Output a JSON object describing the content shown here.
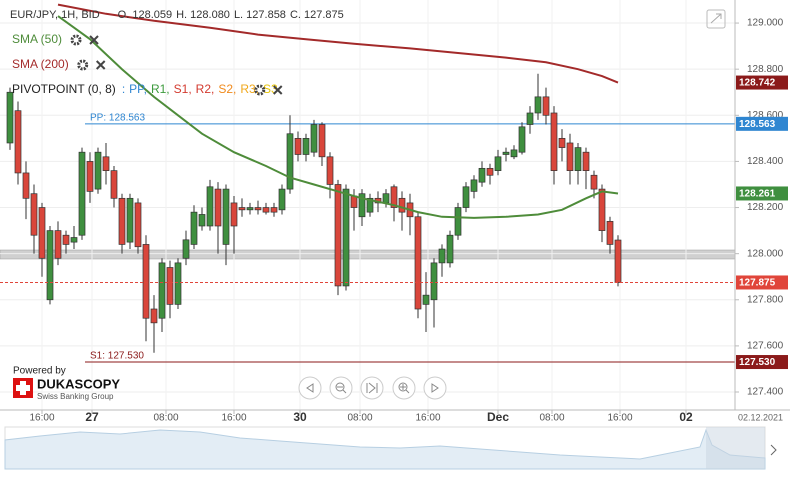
{
  "chart_data": {
    "type": "candlestick",
    "title": "EUR/JPY, 1H, BID",
    "header_stats": [
      "O. 128.059",
      "H. 128.080",
      "L. 127.858",
      "C. 127.875"
    ],
    "up_color": "#3f8f3f",
    "down_color": "#d9463b",
    "open": [
      128.48,
      128.62,
      128.35,
      128.26,
      128.2,
      127.8,
      128.1,
      128.08,
      128.05,
      128.08,
      128.4,
      128.28,
      128.42,
      128.36,
      128.24,
      128.05,
      128.22,
      128.04,
      127.76,
      127.72,
      127.94,
      127.78,
      127.98,
      128.04,
      128.12,
      128.12,
      128.28,
      128.04,
      128.22,
      128.2,
      128.19,
      128.2,
      128.2,
      128.2,
      128.19,
      128.28,
      128.5,
      128.43,
      128.44,
      128.56,
      128.42,
      128.3,
      127.86,
      128.25,
      128.16,
      128.18,
      128.24,
      128.22,
      128.29,
      128.24,
      128.22,
      128.16,
      127.78,
      127.8,
      127.96,
      127.96,
      128.08,
      128.2,
      128.27,
      128.31,
      128.37,
      128.36,
      128.43,
      128.42,
      128.44,
      128.56,
      128.61,
      128.68,
      128.61,
      128.5,
      128.48,
      128.36,
      128.44,
      128.34,
      128.28,
      128.14,
      128.059
    ],
    "high": [
      128.72,
      128.66,
      128.4,
      128.3,
      128.22,
      128.12,
      128.14,
      128.1,
      128.12,
      128.46,
      128.44,
      128.46,
      128.48,
      128.38,
      128.26,
      128.26,
      128.24,
      128.08,
      127.82,
      127.98,
      127.97,
      127.98,
      128.1,
      128.21,
      128.2,
      128.32,
      128.31,
      128.3,
      128.25,
      128.24,
      128.22,
      128.23,
      128.22,
      128.22,
      128.3,
      128.6,
      128.53,
      128.52,
      128.58,
      128.57,
      128.44,
      128.32,
      128.3,
      128.28,
      128.28,
      128.26,
      128.27,
      128.28,
      128.3,
      128.27,
      128.26,
      128.18,
      127.92,
      127.98,
      128.04,
      128.1,
      128.22,
      128.31,
      128.34,
      128.4,
      128.39,
      128.45,
      128.46,
      128.47,
      128.57,
      128.64,
      128.78,
      128.72,
      128.64,
      128.54,
      128.52,
      128.48,
      128.46,
      128.36,
      128.3,
      128.16,
      128.08
    ],
    "low": [
      128.45,
      128.3,
      128.15,
      128.0,
      127.9,
      127.78,
      127.95,
      128.0,
      128.02,
      128.06,
      128.22,
      128.26,
      128.3,
      128.2,
      128.0,
      128.02,
      128.0,
      127.62,
      127.57,
      127.66,
      127.72,
      127.76,
      127.95,
      128.02,
      128.1,
      128.1,
      128.0,
      127.95,
      128.0,
      128.16,
      128.17,
      128.17,
      128.17,
      128.16,
      128.17,
      128.26,
      128.4,
      128.4,
      128.42,
      128.38,
      128.24,
      127.82,
      127.84,
      128.1,
      128.12,
      128.16,
      128.18,
      128.2,
      128.14,
      128.1,
      128.08,
      127.72,
      127.66,
      127.68,
      127.9,
      127.94,
      128.06,
      128.18,
      128.24,
      128.29,
      128.3,
      128.34,
      128.4,
      128.41,
      128.43,
      128.52,
      128.58,
      128.56,
      128.3,
      128.4,
      128.3,
      128.3,
      128.28,
      128.24,
      128.05,
      128.0,
      127.858
    ],
    "close": [
      128.7,
      128.35,
      128.24,
      128.08,
      127.98,
      128.1,
      127.98,
      128.04,
      128.07,
      128.44,
      128.27,
      128.44,
      128.36,
      128.24,
      128.04,
      128.24,
      128.03,
      127.72,
      127.7,
      127.96,
      127.78,
      127.96,
      128.06,
      128.18,
      128.17,
      128.29,
      128.12,
      128.28,
      128.12,
      128.19,
      128.2,
      128.19,
      128.18,
      128.18,
      128.28,
      128.52,
      128.43,
      128.5,
      128.56,
      128.42,
      128.3,
      127.86,
      128.28,
      128.2,
      128.26,
      128.24,
      128.22,
      128.26,
      128.2,
      128.18,
      128.16,
      127.76,
      127.82,
      127.96,
      128.02,
      128.08,
      128.2,
      128.29,
      128.32,
      128.37,
      128.34,
      128.42,
      128.44,
      128.45,
      128.55,
      128.61,
      128.68,
      128.6,
      128.36,
      128.46,
      128.36,
      128.46,
      128.36,
      128.28,
      128.1,
      128.04,
      127.875
    ],
    "series": [
      {
        "name": "SMA (50)",
        "color": "#4e8c3a",
        "x": [
          6,
          10,
          14,
          18,
          21,
          24,
          28,
          32,
          35,
          38,
          41,
          44,
          48,
          51,
          54,
          58,
          62,
          66,
          69,
          72,
          74,
          76
        ],
        "values": [
          129.03,
          128.93,
          128.8,
          128.68,
          128.6,
          128.52,
          128.44,
          128.38,
          128.33,
          128.3,
          128.27,
          128.24,
          128.21,
          128.18,
          128.16,
          128.155,
          128.16,
          128.17,
          128.19,
          128.24,
          128.27,
          128.261
        ]
      },
      {
        "name": "SMA (200)",
        "color": "#a32a2a",
        "x": [
          6,
          12,
          18,
          25,
          31,
          37,
          43,
          50,
          56,
          62,
          67,
          71,
          74,
          76
        ],
        "values": [
          129.08,
          129.04,
          129.01,
          128.98,
          128.95,
          128.93,
          128.91,
          128.89,
          128.87,
          128.85,
          128.83,
          128.8,
          128.77,
          128.742
        ]
      }
    ],
    "pivot_title": "PIVOTPOINT (0, 8)",
    "pivot_prefix": ":",
    "pivot_legend": [
      {
        "text": "PP,",
        "color": "#2f86d1"
      },
      {
        "text": "R1,",
        "color": "#3c9a3c"
      },
      {
        "text": "S1,",
        "color": "#d33a2f"
      },
      {
        "text": "R2,",
        "color": "#d33a2f"
      },
      {
        "text": "S2,",
        "color": "#f08a1c"
      },
      {
        "text": "R3,",
        "color": "#f0a81c"
      },
      {
        "text": "S3",
        "color": "#e6c200"
      }
    ],
    "pivots": [
      {
        "value": 128.563,
        "label": "PP: 128.563",
        "color": "#2f86d1"
      },
      {
        "value": 127.53,
        "label": "S1: 127.530",
        "color": "#8b1a1a"
      }
    ],
    "price_tags": [
      {
        "value": 128.742,
        "label": "128.742",
        "color": "#8b1a1a"
      },
      {
        "value": 128.563,
        "label": "128.563",
        "color": "#2f86d1"
      },
      {
        "value": 128.261,
        "label": "128.261",
        "color": "#3f8f3f"
      },
      {
        "value": 127.875,
        "label": "127.875",
        "color": "#e0453a",
        "line": "dashed"
      },
      {
        "value": 127.53,
        "label": "127.530",
        "color": "#8b1a1a"
      }
    ],
    "xlim": [
      -1.25,
      90.625
    ],
    "xticks": [
      {
        "value": 4,
        "label": "16:00"
      },
      {
        "value": 10.25,
        "label": "27"
      },
      {
        "value": 19.5,
        "label": "08:00"
      },
      {
        "value": 28,
        "label": "16:00"
      },
      {
        "value": 36.25,
        "label": "30"
      },
      {
        "value": 43.75,
        "label": "08:00"
      },
      {
        "value": 52.25,
        "label": "16:00"
      },
      {
        "value": 61,
        "label": "Dec"
      },
      {
        "value": 67.75,
        "label": "08:00"
      },
      {
        "value": 76.25,
        "label": "16:00"
      },
      {
        "value": 84.5,
        "label": "02"
      }
    ],
    "ylim": [
      127.322,
      129.1
    ],
    "yticks": [
      {
        "value": 127.4,
        "label": "127.400"
      },
      {
        "value": 127.6,
        "label": "127.600"
      },
      {
        "value": 127.8,
        "label": "127.800"
      },
      {
        "value": 128,
        "label": "128.000"
      },
      {
        "value": 128.2,
        "label": "128.200"
      },
      {
        "value": 128.4,
        "label": "128.400"
      },
      {
        "value": 128.6,
        "label": "128.600"
      },
      {
        "value": 128.8,
        "label": "128.800"
      },
      {
        "value": 129,
        "label": "129.000"
      }
    ],
    "grid": true,
    "date_label": "02.12.2021",
    "branding": {
      "powered": "Powered by",
      "name": "DUKASCOPY",
      "tagline": "Swiss Banking Group"
    }
  }
}
